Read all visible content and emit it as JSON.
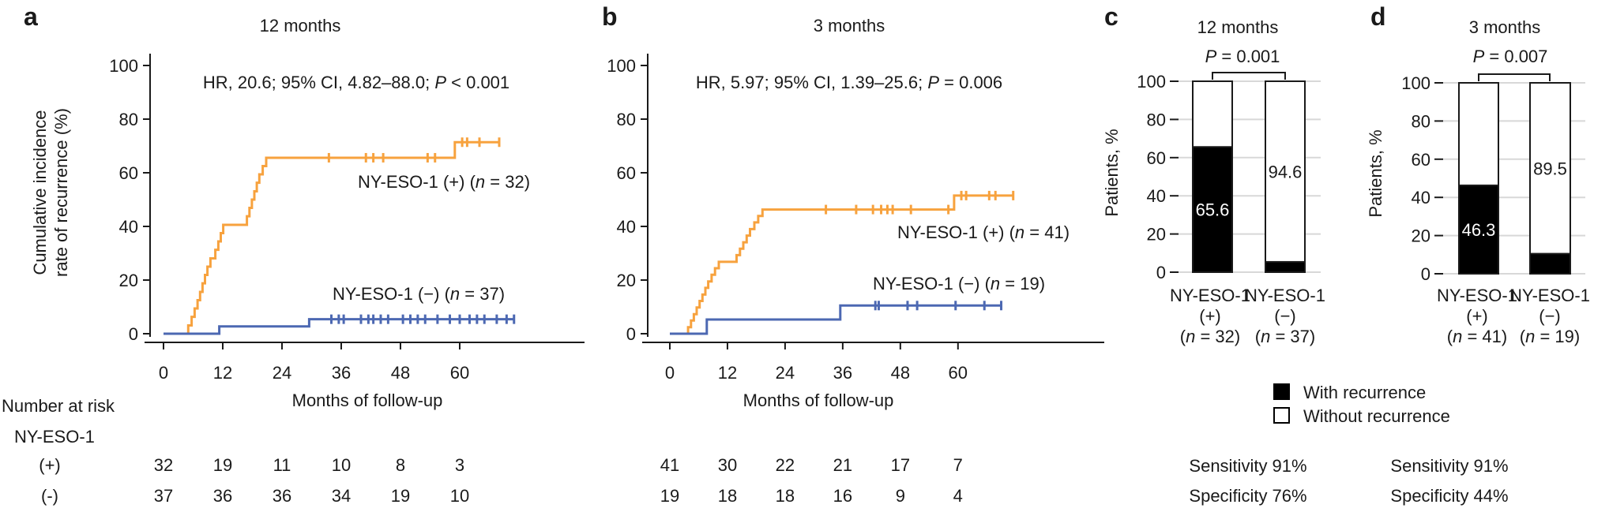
{
  "legend": {
    "items": [
      {
        "label": "With recurrence",
        "color": "#000000"
      },
      {
        "label": "Without recurrence",
        "color": "#FFFFFF"
      }
    ]
  },
  "colors": {
    "positive_series": "#F7A23E",
    "negative_series": "#4C68B2",
    "with_recurrence": "#000000",
    "without_recurrence": "#FFFFFF",
    "gridline": "#D8D8D8",
    "axis": "#1A1A1A"
  },
  "chart_data": [
    {
      "id": "a",
      "panel_label": "a",
      "type": "step-line",
      "title": "12 months",
      "stats": {
        "prefix": "HR, 20.6; 95% CI, 4.82–88.0; ",
        "p_label": "P",
        "p_value": " < 0.001"
      },
      "ylabel_line1": "Cumulative incidence",
      "ylabel_line2": "rate of recurrence (%)",
      "xlabel": "Months of follow-up",
      "xticks": [
        0,
        12,
        24,
        36,
        48,
        60
      ],
      "yticks": [
        0,
        20,
        40,
        60,
        80,
        100
      ],
      "xlim": [
        0,
        85
      ],
      "ylim": [
        0,
        100
      ],
      "series": [
        {
          "key": "ny-eso-1-positive",
          "label_pre": "NY-ESO-1 (+) (",
          "label_italic": "n",
          "label_post": " = 32)",
          "n": 32,
          "color": "#F7A23E",
          "steps": [
            [
              0,
              0
            ],
            [
              5,
              0
            ],
            [
              5,
              3.1
            ],
            [
              5.7,
              3.1
            ],
            [
              5.7,
              6.3
            ],
            [
              6.3,
              6.3
            ],
            [
              6.3,
              9.4
            ],
            [
              6.9,
              9.4
            ],
            [
              6.9,
              12.5
            ],
            [
              7.4,
              12.5
            ],
            [
              7.4,
              15.6
            ],
            [
              7.9,
              15.6
            ],
            [
              7.9,
              18.8
            ],
            [
              8.4,
              18.8
            ],
            [
              8.4,
              21.9
            ],
            [
              8.9,
              21.9
            ],
            [
              8.9,
              25.0
            ],
            [
              9.5,
              25.0
            ],
            [
              9.5,
              28.1
            ],
            [
              10.5,
              28.1
            ],
            [
              10.5,
              31.3
            ],
            [
              11.1,
              31.3
            ],
            [
              11.1,
              34.4
            ],
            [
              11.6,
              34.4
            ],
            [
              11.6,
              37.5
            ],
            [
              12.1,
              37.5
            ],
            [
              12.1,
              40.6
            ],
            [
              16.9,
              40.6
            ],
            [
              16.9,
              43.8
            ],
            [
              17.4,
              43.8
            ],
            [
              17.4,
              46.9
            ],
            [
              17.9,
              46.9
            ],
            [
              17.9,
              50.0
            ],
            [
              18.4,
              50.0
            ],
            [
              18.4,
              53.1
            ],
            [
              18.9,
              53.1
            ],
            [
              18.9,
              56.3
            ],
            [
              19.4,
              56.3
            ],
            [
              19.4,
              59.4
            ],
            [
              20.1,
              59.4
            ],
            [
              20.1,
              62.5
            ],
            [
              20.8,
              62.5
            ],
            [
              20.8,
              65.6
            ],
            [
              59,
              65.6
            ],
            [
              59,
              71.4
            ],
            [
              68,
              71.4
            ]
          ],
          "censors": [
            [
              33.5,
              65.6
            ],
            [
              41,
              65.6
            ],
            [
              42.5,
              65.6
            ],
            [
              44.5,
              65.6
            ],
            [
              53.5,
              65.6
            ],
            [
              55,
              65.6
            ],
            [
              60.5,
              71.4
            ],
            [
              61.5,
              71.4
            ],
            [
              64,
              71.4
            ],
            [
              68,
              71.4
            ]
          ]
        },
        {
          "key": "ny-eso-1-negative",
          "label_pre": "NY-ESO-1 (−) (",
          "label_italic": "n",
          "label_post": " = 37)",
          "n": 37,
          "color": "#4C68B2",
          "steps": [
            [
              0,
              0
            ],
            [
              11.3,
              0
            ],
            [
              11.3,
              2.7
            ],
            [
              29.5,
              2.7
            ],
            [
              29.5,
              5.4
            ],
            [
              71,
              5.4
            ]
          ],
          "censors": [
            [
              34,
              5.4
            ],
            [
              35.5,
              5.4
            ],
            [
              36.5,
              5.4
            ],
            [
              40,
              5.4
            ],
            [
              41.5,
              5.4
            ],
            [
              42.5,
              5.4
            ],
            [
              44,
              5.4
            ],
            [
              45.5,
              5.4
            ],
            [
              48.5,
              5.4
            ],
            [
              50,
              5.4
            ],
            [
              51.5,
              5.4
            ],
            [
              53,
              5.4
            ],
            [
              55.5,
              5.4
            ],
            [
              58,
              5.4
            ],
            [
              60,
              5.4
            ],
            [
              62,
              5.4
            ],
            [
              63.5,
              5.4
            ],
            [
              65,
              5.4
            ],
            [
              67.5,
              5.4
            ],
            [
              69.5,
              5.4
            ],
            [
              71,
              5.4
            ]
          ]
        }
      ],
      "at_risk": {
        "header": "Number at risk",
        "group": "NY-ESO-1",
        "rows": [
          {
            "label": "(+)",
            "values": [
              "32",
              "19",
              "11",
              "10",
              "8",
              "3"
            ]
          },
          {
            "label": "(-)",
            "values": [
              "37",
              "36",
              "36",
              "34",
              "19",
              "10"
            ]
          }
        ]
      }
    },
    {
      "id": "b",
      "panel_label": "b",
      "type": "step-line",
      "title": "3 months",
      "stats": {
        "prefix": "HR, 5.97; 95% CI, 1.39–25.6; ",
        "p_label": "P",
        "p_value": " = 0.006"
      },
      "xlabel": "Months of follow-up",
      "xticks": [
        0,
        12,
        24,
        36,
        48,
        60
      ],
      "yticks": [
        0,
        20,
        40,
        60,
        80,
        100
      ],
      "xlim": [
        0,
        90
      ],
      "ylim": [
        0,
        100
      ],
      "series": [
        {
          "key": "ny-eso-1-positive",
          "label_pre": "NY-ESO-1 (+) (",
          "label_italic": "n",
          "label_post": " = 41)",
          "n": 41,
          "color": "#F7A23E",
          "steps": [
            [
              0,
              0
            ],
            [
              3.8,
              0
            ],
            [
              3.8,
              2.4
            ],
            [
              4.4,
              2.4
            ],
            [
              4.4,
              4.9
            ],
            [
              5.0,
              4.9
            ],
            [
              5.0,
              7.3
            ],
            [
              5.6,
              7.3
            ],
            [
              5.6,
              9.8
            ],
            [
              6.2,
              9.8
            ],
            [
              6.2,
              12.2
            ],
            [
              6.8,
              12.2
            ],
            [
              6.8,
              14.6
            ],
            [
              7.4,
              14.6
            ],
            [
              7.4,
              17.1
            ],
            [
              8.0,
              17.1
            ],
            [
              8.0,
              19.5
            ],
            [
              8.7,
              19.5
            ],
            [
              8.7,
              22.0
            ],
            [
              9.4,
              22.0
            ],
            [
              9.4,
              24.4
            ],
            [
              10.2,
              24.4
            ],
            [
              10.2,
              26.8
            ],
            [
              13.9,
              26.8
            ],
            [
              13.9,
              29.3
            ],
            [
              14.6,
              29.3
            ],
            [
              14.6,
              31.7
            ],
            [
              15.3,
              31.7
            ],
            [
              15.3,
              34.1
            ],
            [
              16.0,
              34.1
            ],
            [
              16.0,
              36.6
            ],
            [
              16.7,
              36.6
            ],
            [
              16.7,
              39.0
            ],
            [
              17.6,
              39.0
            ],
            [
              17.6,
              41.5
            ],
            [
              18.4,
              41.5
            ],
            [
              18.4,
              43.9
            ],
            [
              19.3,
              43.9
            ],
            [
              19.3,
              46.3
            ],
            [
              59.2,
              46.3
            ],
            [
              59.2,
              51.5
            ],
            [
              71.5,
              51.5
            ]
          ],
          "censors": [
            [
              32.5,
              46.3
            ],
            [
              38.8,
              46.3
            ],
            [
              42.3,
              46.3
            ],
            [
              44,
              46.3
            ],
            [
              45.3,
              46.3
            ],
            [
              46.4,
              46.3
            ],
            [
              50.2,
              46.3
            ],
            [
              58,
              46.3
            ],
            [
              60.7,
              51.5
            ],
            [
              61.7,
              51.5
            ],
            [
              66.5,
              51.5
            ],
            [
              67.8,
              51.5
            ],
            [
              71.5,
              51.5
            ]
          ]
        },
        {
          "key": "ny-eso-1-negative",
          "label_pre": "NY-ESO-1 (−) (",
          "label_italic": "n",
          "label_post": " = 19)",
          "n": 19,
          "color": "#4C68B2",
          "steps": [
            [
              0,
              0
            ],
            [
              7.7,
              0
            ],
            [
              7.7,
              5.3
            ],
            [
              35.5,
              5.3
            ],
            [
              35.5,
              10.5
            ],
            [
              69,
              10.5
            ]
          ],
          "censors": [
            [
              42.8,
              10.5
            ],
            [
              43.5,
              10.5
            ],
            [
              49.5,
              10.5
            ],
            [
              51.5,
              10.5
            ],
            [
              59.5,
              10.5
            ],
            [
              65.5,
              10.5
            ],
            [
              69,
              10.5
            ]
          ]
        }
      ],
      "at_risk": {
        "rows": [
          {
            "label": "(+)",
            "values": [
              "41",
              "30",
              "22",
              "21",
              "17",
              "7"
            ]
          },
          {
            "label": "(-)",
            "values": [
              "19",
              "18",
              "18",
              "16",
              "9",
              "4"
            ]
          }
        ]
      }
    },
    {
      "id": "c",
      "panel_label": "c",
      "type": "stacked-bar",
      "title": "12 months",
      "p": {
        "label": "P",
        "value": " = 0.001"
      },
      "ylabel": "Patients, %",
      "yticks": [
        0,
        20,
        40,
        60,
        80,
        100
      ],
      "ylim": [
        0,
        100
      ],
      "bars": [
        {
          "cat": "NY-ESO-1",
          "sign": "(+)",
          "n_pre": "(",
          "n_italic": "n",
          "n_post": " = 32)",
          "with_recurrence_pct": 65.6,
          "without_recurrence_pct": 34.4,
          "value_label": "65.6",
          "value_on": "black"
        },
        {
          "cat": "NY-ESO-1",
          "sign": "(−)",
          "n_pre": "(",
          "n_italic": "n",
          "n_post": " = 37)",
          "with_recurrence_pct": 5.4,
          "without_recurrence_pct": 94.6,
          "value_label": "94.6",
          "value_on": "white"
        }
      ],
      "sensitivity": "Sensitivity 91%",
      "specificity": "Specificity 76%"
    },
    {
      "id": "d",
      "panel_label": "d",
      "type": "stacked-bar",
      "title": "3 months",
      "p": {
        "label": "P",
        "value": " = 0.007"
      },
      "ylabel": "Patients, %",
      "yticks": [
        0,
        20,
        40,
        60,
        80,
        100
      ],
      "ylim": [
        0,
        100
      ],
      "bars": [
        {
          "cat": "NY-ESO-1",
          "sign": "(+)",
          "n_pre": "(",
          "n_italic": "n",
          "n_post": " = 41)",
          "with_recurrence_pct": 46.3,
          "without_recurrence_pct": 53.7,
          "value_label": "46.3",
          "value_on": "black"
        },
        {
          "cat": "NY-ESO-1",
          "sign": "(−)",
          "n_pre": "(",
          "n_italic": "n",
          "n_post": " = 19)",
          "with_recurrence_pct": 10.5,
          "without_recurrence_pct": 89.5,
          "value_label": "89.5",
          "value_on": "white"
        }
      ],
      "sensitivity": "Sensitivity 91%",
      "specificity": "Specificity 44%"
    }
  ]
}
